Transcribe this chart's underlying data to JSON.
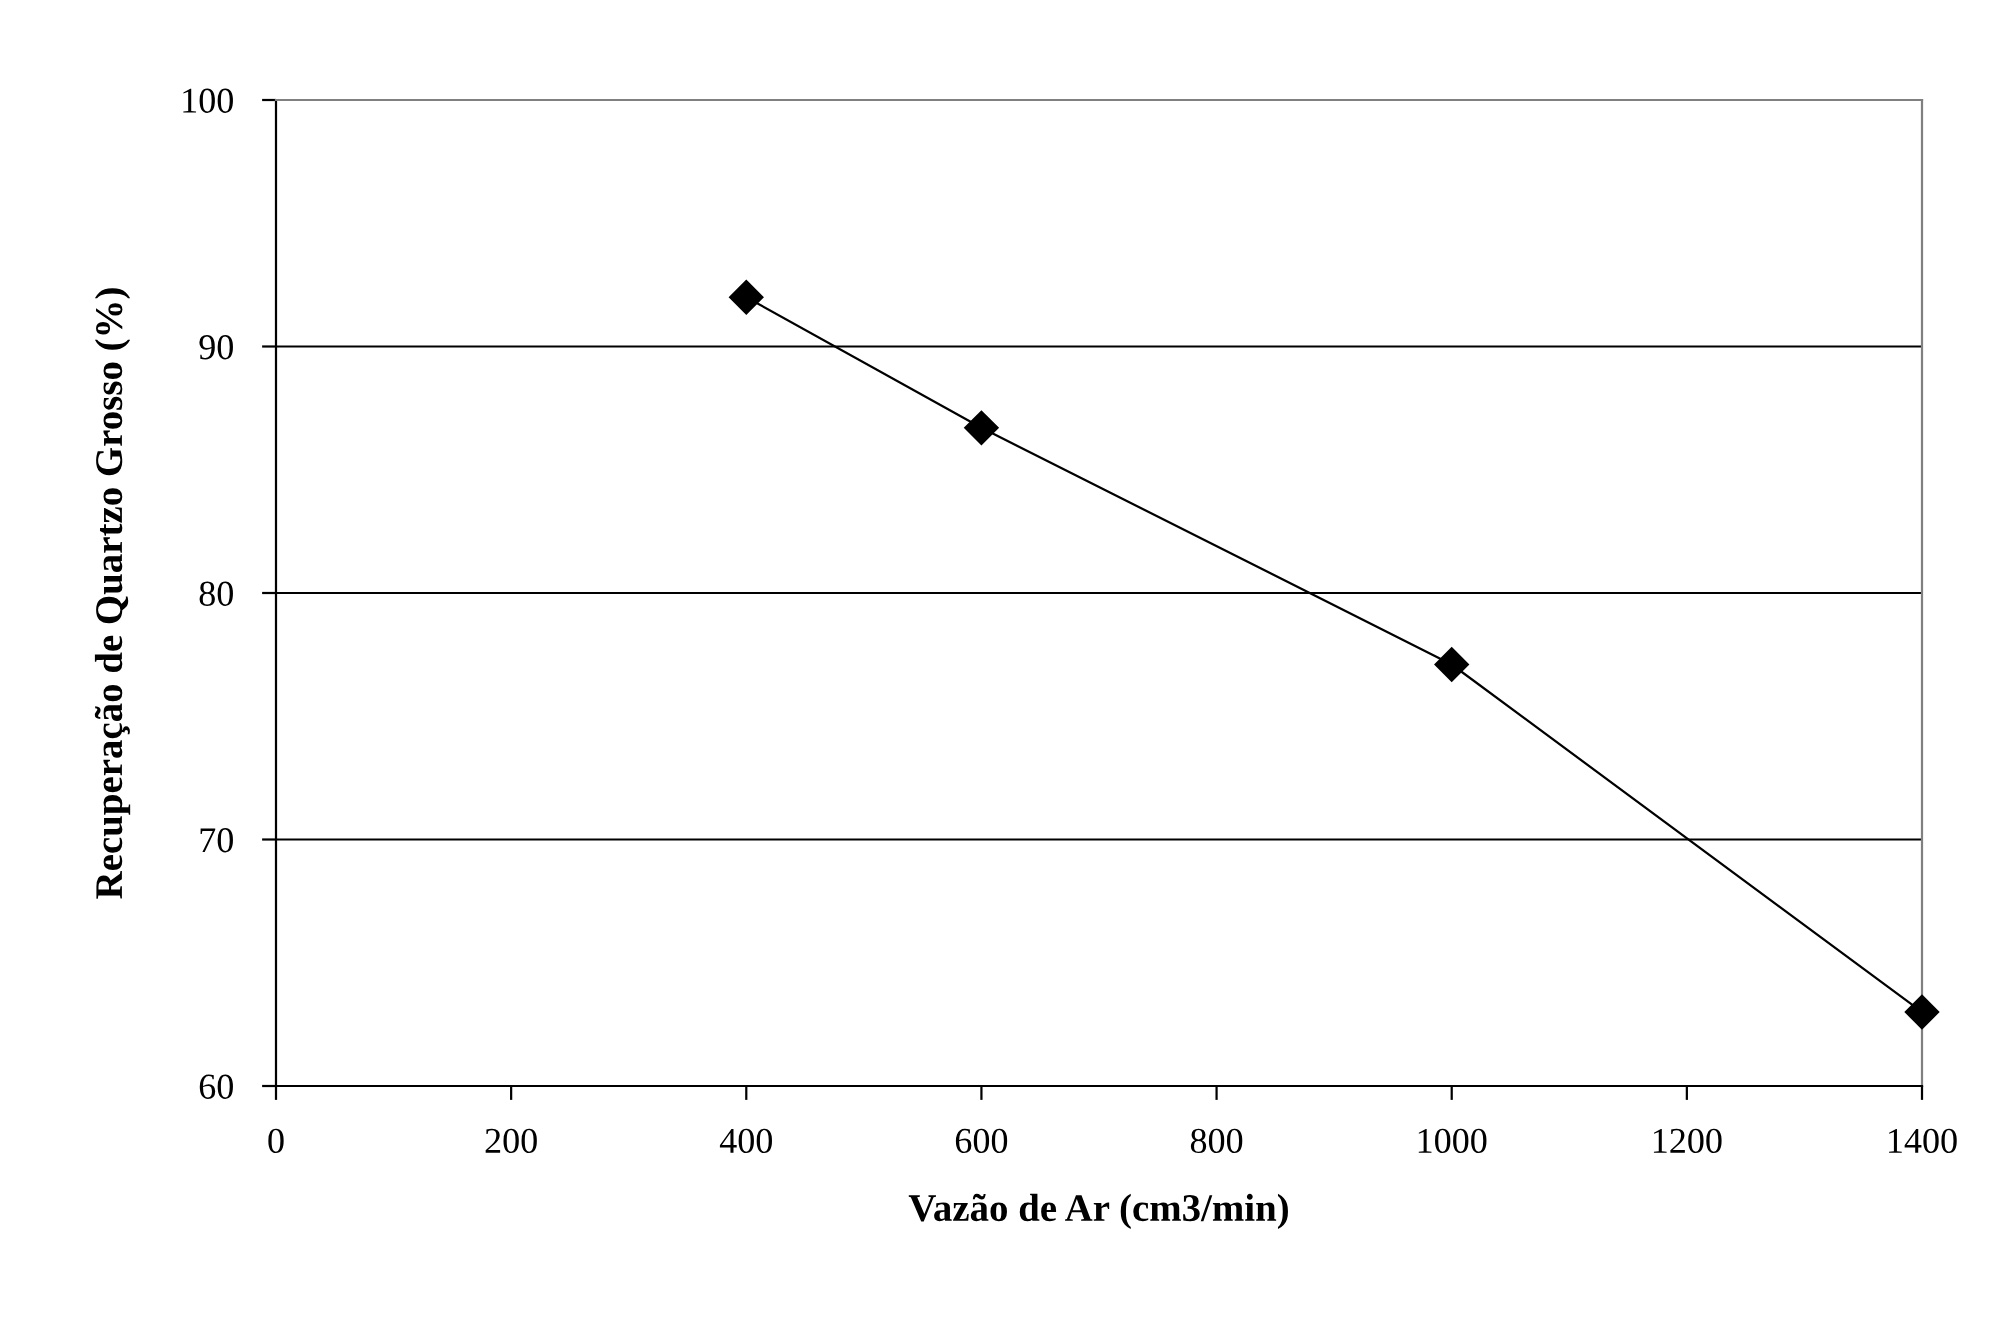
{
  "chart_data": {
    "type": "line",
    "xlabel": "Vazão de Ar (cm3/min)",
    "ylabel": "Recuperação de Quartzo Grosso (%)",
    "x": [
      400,
      600,
      1000,
      1400
    ],
    "series": [
      {
        "color": "#000000",
        "values": [
          92,
          86.7,
          77.1,
          63
        ]
      }
    ],
    "xlim": [
      0,
      1400
    ],
    "xticks": [
      0,
      200,
      400,
      600,
      800,
      1000,
      1200,
      1400
    ],
    "ylim": [
      60,
      100
    ],
    "yticks": [
      60,
      70,
      80,
      90,
      100
    ],
    "grid": "y",
    "marker": "diamond",
    "line_style": "solid"
  }
}
